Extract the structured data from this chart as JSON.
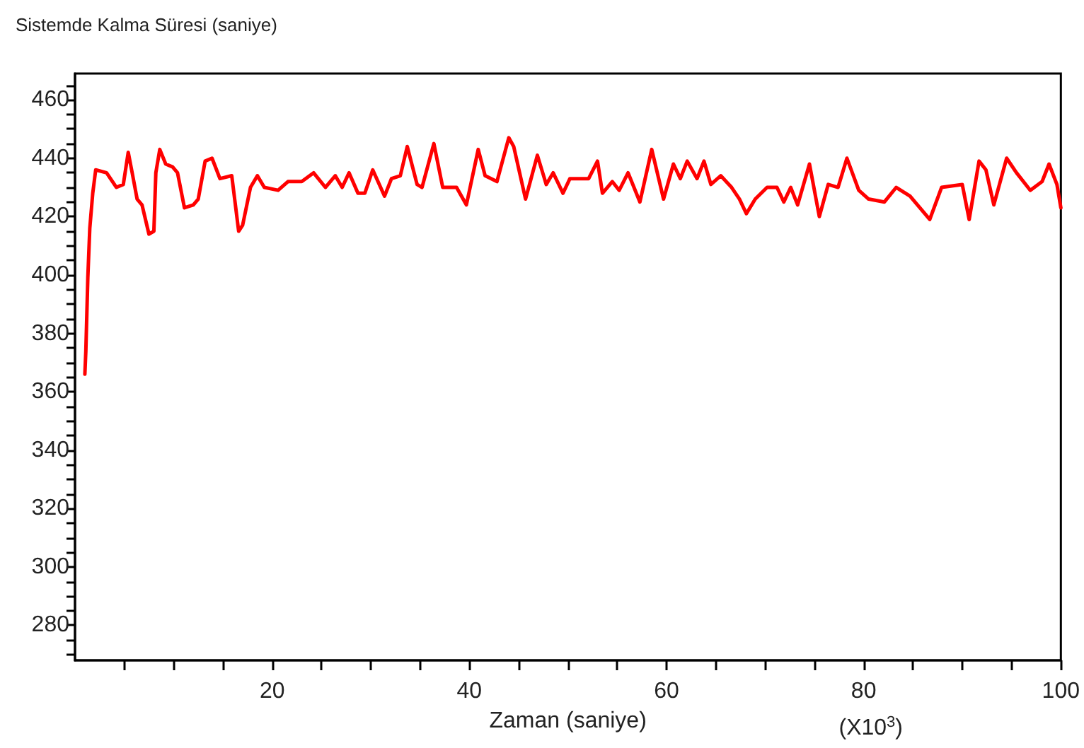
{
  "chart_data": {
    "type": "line",
    "ylabel": "Sistemde Kalma Süresi (saniye)",
    "xlabel": "Zaman (saniye)",
    "annotations": [
      "(X10$^{3}$)"
    ],
    "x": [
      1.0,
      1.1,
      1.3,
      1.5,
      1.8,
      2.1,
      3.2,
      4.2,
      4.9,
      5.4,
      5.8,
      6.3,
      6.8,
      7.5,
      8.0,
      8.2,
      8.6,
      9.2,
      9.9,
      10.4,
      11.1,
      12.0,
      12.5,
      13.2,
      13.9,
      14.7,
      15.9,
      16.6,
      17.0,
      17.8,
      18.5,
      19.2,
      20.6,
      21.6,
      23.0,
      24.2,
      25.4,
      26.4,
      27.1,
      27.8,
      28.7,
      29.4,
      30.2,
      31.4,
      32.1,
      33.0,
      33.7,
      34.7,
      35.2,
      36.4,
      37.3,
      38.7,
      39.7,
      40.9,
      41.6,
      42.8,
      44.0,
      44.5,
      45.7,
      46.9,
      47.8,
      48.5,
      49.5,
      50.2,
      52.1,
      53.0,
      53.5,
      54.5,
      55.2,
      56.1,
      57.3,
      58.5,
      59.7,
      60.7,
      61.4,
      62.1,
      63.1,
      63.8,
      64.5,
      65.5,
      66.6,
      67.4,
      68.1,
      69.0,
      70.2,
      71.2,
      71.9,
      72.6,
      73.3,
      74.5,
      75.5,
      76.4,
      77.4,
      78.3,
      79.5,
      80.5,
      82.1,
      83.3,
      84.7,
      85.7,
      86.7,
      87.9,
      90.0,
      90.7,
      91.7,
      92.4,
      93.2,
      94.5,
      95.5,
      96.9,
      98.1,
      98.8,
      99.6,
      100.0
    ],
    "series": [
      {
        "color": "#ff0000",
        "values": [
          366,
          374,
          399,
          416,
          428,
          436,
          435,
          430,
          431,
          442,
          435,
          426,
          424,
          414,
          415,
          435,
          443,
          438,
          437,
          435,
          423,
          424,
          426,
          439,
          440,
          433,
          434,
          415,
          417,
          430,
          434,
          430,
          429,
          432,
          432,
          435,
          430,
          434,
          430,
          435,
          428,
          428,
          436,
          427,
          433,
          434,
          444,
          431,
          430,
          445,
          430,
          430,
          424,
          443,
          434,
          432,
          447,
          444,
          426,
          441,
          431,
          435,
          428,
          433,
          433,
          439,
          428,
          432,
          429,
          435,
          425,
          443,
          426,
          438,
          433,
          439,
          433,
          439,
          431,
          434,
          430,
          426,
          421,
          426,
          430,
          430,
          425,
          430,
          424,
          438,
          420,
          431,
          430,
          440,
          429,
          426,
          425,
          430,
          427,
          423,
          419,
          430,
          431,
          419,
          439,
          436,
          424,
          440,
          435,
          429,
          432,
          438,
          431,
          423
        ]
      }
    ],
    "xlim": [
      0,
      100
    ],
    "xticks": [
      {
        "value": 5,
        "label": null
      },
      {
        "value": 10,
        "label": null
      },
      {
        "value": 15,
        "label": null
      },
      20,
      {
        "value": 25,
        "label": null
      },
      {
        "value": 30,
        "label": null
      },
      {
        "value": 35,
        "label": null
      },
      40,
      {
        "value": 45,
        "label": null
      },
      {
        "value": 50,
        "label": null
      },
      {
        "value": 55,
        "label": null
      },
      60,
      {
        "value": 65,
        "label": null
      },
      {
        "value": 70,
        "label": null
      },
      {
        "value": 75,
        "label": null
      },
      80,
      {
        "value": 85,
        "label": null
      },
      {
        "value": 90,
        "label": null
      },
      {
        "value": 95,
        "label": null
      },
      100
    ],
    "ylim": [
      268,
      469
    ],
    "yticks": [
      {
        "value": 270,
        "label": null
      },
      {
        "value": 275,
        "label": null
      },
      280,
      {
        "value": 285,
        "label": null
      },
      {
        "value": 290,
        "label": null
      },
      {
        "value": 295,
        "label": null
      },
      300,
      {
        "value": 305,
        "label": null
      },
      {
        "value": 310,
        "label": null
      },
      {
        "value": 315,
        "label": null
      },
      320,
      {
        "value": 325,
        "label": null
      },
      {
        "value": 330,
        "label": null
      },
      {
        "value": 335,
        "label": null
      },
      340,
      {
        "value": 345,
        "label": null
      },
      {
        "value": 350,
        "label": null
      },
      {
        "value": 355,
        "label": null
      },
      360,
      {
        "value": 365,
        "label": null
      },
      {
        "value": 370,
        "label": null
      },
      {
        "value": 375,
        "label": null
      },
      380,
      {
        "value": 385,
        "label": null
      },
      {
        "value": 390,
        "label": null
      },
      {
        "value": 395,
        "label": null
      },
      400,
      {
        "value": 405,
        "label": null
      },
      {
        "value": 410,
        "label": null
      },
      {
        "value": 415,
        "label": null
      },
      420,
      {
        "value": 425,
        "label": null
      },
      {
        "value": 430,
        "label": null
      },
      {
        "value": 435,
        "label": null
      },
      440,
      {
        "value": 445,
        "label": null
      },
      {
        "value": 450,
        "label": null
      },
      {
        "value": 455,
        "label": null
      },
      460,
      {
        "value": 465,
        "label": null
      }
    ],
    "grid": false,
    "marker": "none",
    "line_style": "solid"
  }
}
